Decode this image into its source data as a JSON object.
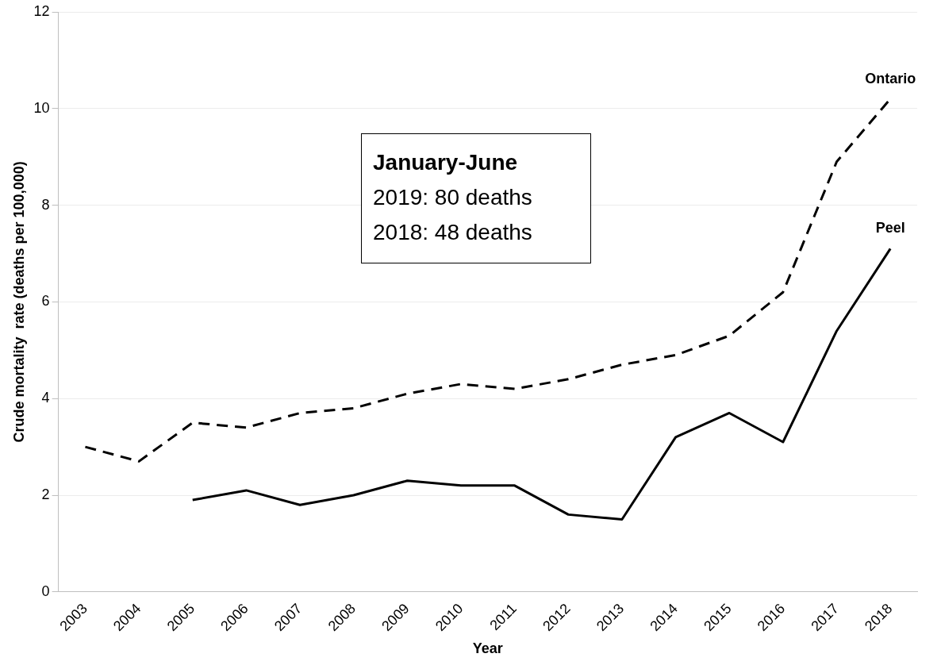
{
  "chart_data": {
    "type": "line",
    "xlabel": "Year",
    "ylabel": "Crude mortality  rate (deaths per 100,000)",
    "categories": [
      "2003",
      "2004",
      "2005",
      "2006",
      "2007",
      "2008",
      "2009",
      "2010",
      "2011",
      "2012",
      "2013",
      "2014",
      "2015",
      "2016",
      "2017",
      "2018"
    ],
    "series": [
      {
        "name": "Ontario",
        "color": "#000000",
        "line_style": "dashed",
        "values": [
          3.0,
          2.7,
          3.5,
          3.4,
          3.7,
          3.8,
          4.1,
          4.3,
          4.2,
          4.4,
          4.7,
          4.9,
          5.3,
          6.2,
          8.9,
          10.2
        ]
      },
      {
        "name": "Peel",
        "color": "#000000",
        "line_style": "solid",
        "values": [
          null,
          null,
          1.9,
          2.1,
          1.8,
          2.0,
          2.3,
          2.2,
          2.2,
          1.6,
          1.5,
          3.2,
          3.7,
          3.1,
          5.4,
          7.1
        ]
      }
    ],
    "ylim": [
      0,
      12
    ],
    "yticks": [
      0,
      2,
      4,
      6,
      8,
      10,
      12
    ],
    "grid": "y",
    "legend": false,
    "marker": "none",
    "annotations": [
      "January-June",
      "2019: 80 deaths",
      "2018: 48 deaths"
    ]
  }
}
